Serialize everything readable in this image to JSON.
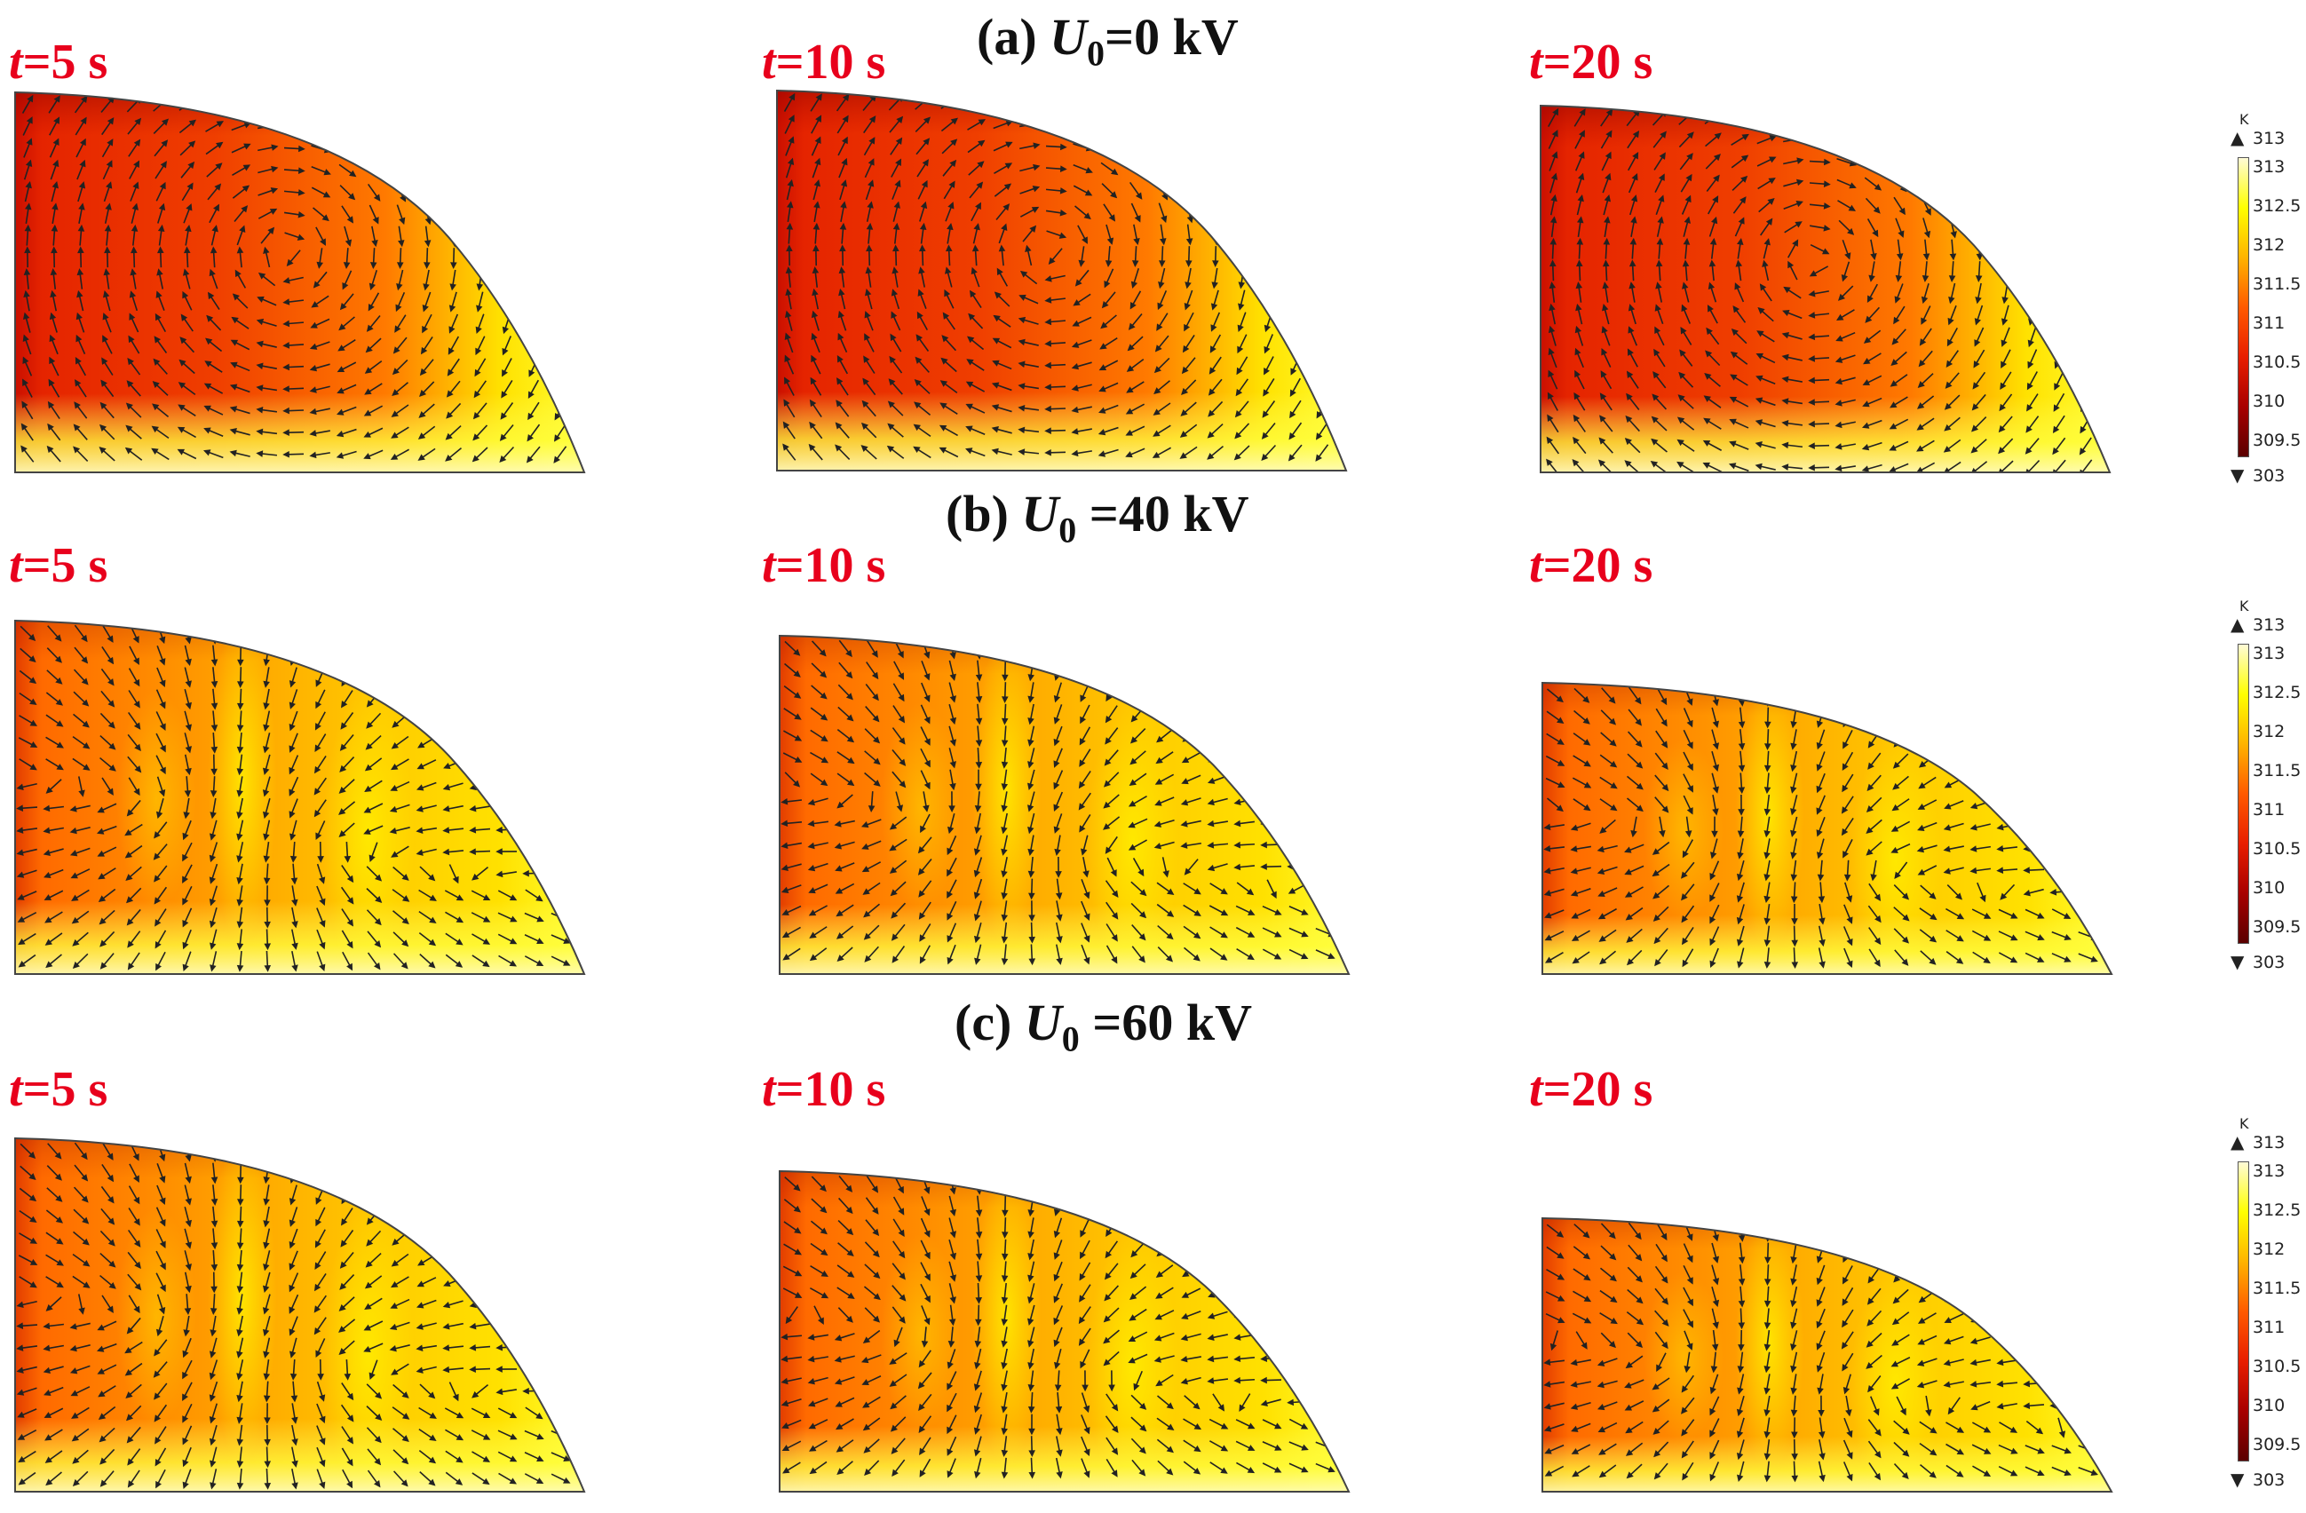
{
  "rows": [
    {
      "title_prefix": "(a) ",
      "title_symbol": "U",
      "title_subscript": "0",
      "title_suffix": "=0 kV",
      "color_max": "313",
      "color_min": "303",
      "panels": [
        {
          "t_symbol": "t",
          "t_value": "=5 s",
          "hot_intensity": 0.95,
          "flow_cells": 1
        },
        {
          "t_symbol": "t",
          "t_value": "=10 s",
          "hot_intensity": 0.95,
          "flow_cells": 1
        },
        {
          "t_symbol": "t",
          "t_value": "=20 s",
          "hot_intensity": 0.95,
          "flow_cells": 1
        }
      ]
    },
    {
      "title_prefix": "(b) ",
      "title_symbol": "U",
      "title_subscript": "0",
      "title_suffix": " =40 kV",
      "color_max": "313",
      "color_min": "303",
      "panels": [
        {
          "t_symbol": "t",
          "t_value": "=5 s",
          "hot_intensity": 0.6,
          "flow_cells": 2
        },
        {
          "t_symbol": "t",
          "t_value": "=10 s",
          "hot_intensity": 0.6,
          "flow_cells": 2
        },
        {
          "t_symbol": "t",
          "t_value": "=20 s",
          "hot_intensity": 0.55,
          "flow_cells": 2
        }
      ]
    },
    {
      "title_prefix": "(c) ",
      "title_symbol": "U",
      "title_subscript": "0",
      "title_suffix": " =60 kV",
      "color_max": "313",
      "color_min": "303",
      "panels": [
        {
          "t_symbol": "t",
          "t_value": "=5 s",
          "hot_intensity": 0.55,
          "flow_cells": 2
        },
        {
          "t_symbol": "t",
          "t_value": "=10 s",
          "hot_intensity": 0.6,
          "flow_cells": 2
        },
        {
          "t_symbol": "t",
          "t_value": "=20 s",
          "hot_intensity": 0.55,
          "flow_cells": 2
        }
      ]
    }
  ],
  "colorbar": {
    "unit": "K",
    "ticks": [
      "313",
      "312.5",
      "312",
      "311.5",
      "311",
      "310.5",
      "310",
      "309.5"
    ],
    "colors": [
      "#fffbd6",
      "#ffff00",
      "#ffb300",
      "#ff5a00",
      "#e81e00",
      "#a80000",
      "#5a0000"
    ]
  }
}
